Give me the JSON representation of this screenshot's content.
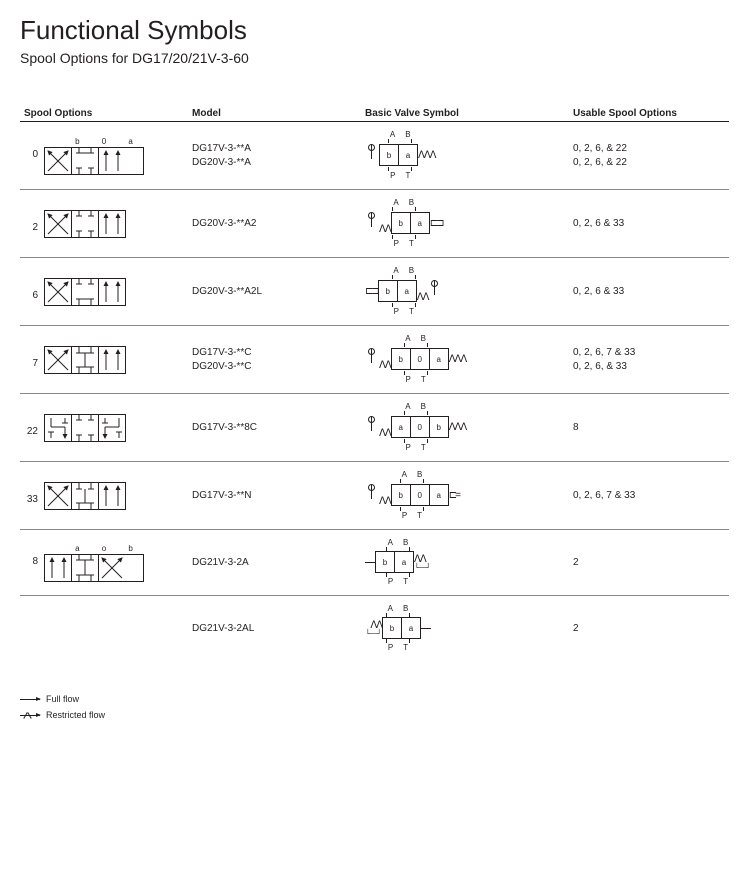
{
  "title": "Functional Symbols",
  "subtitle": "Spool Options for DG17/20/21V-3-60",
  "headers": {
    "spool": "Spool Options",
    "model": "Model",
    "basic": "Basic Valve Symbol",
    "usable": "Usable Spool Options"
  },
  "port_labels": {
    "A": "A",
    "B": "B",
    "P": "P",
    "T": "T",
    "a": "a",
    "b": "b",
    "o": "0"
  },
  "rows": [
    {
      "num": "0",
      "spool_top_labels": [
        "b",
        "0",
        "a"
      ],
      "spool_segs": [
        "cross",
        "ht",
        "parallel"
      ],
      "models": [
        "DG17V-3-**A",
        "DG20V-3-**A"
      ],
      "valve": {
        "left": "lever",
        "right": "spring",
        "cells": [
          "b",
          "a"
        ],
        "ab": true,
        "pt": true
      },
      "usable": [
        "0, 2, 6, & 22",
        "0, 2, 6, & 22"
      ]
    },
    {
      "num": "2",
      "spool_segs": [
        "cross",
        "block2",
        "parallel"
      ],
      "models": [
        "DG20V-3-**A2"
      ],
      "valve": {
        "left": "spring_lever",
        "right": "detent",
        "cells": [
          "b",
          "a"
        ],
        "ab": true,
        "pt": true
      },
      "usable": [
        "0, 2, 6 & 33"
      ]
    },
    {
      "num": "6",
      "spool_segs": [
        "cross",
        "hb",
        "parallel"
      ],
      "models": [
        "DG20V-3-**A2L"
      ],
      "valve": {
        "left": "detent",
        "right": "spring_lever_r",
        "cells": [
          "b",
          "a"
        ],
        "ab": true,
        "pt": true
      },
      "usable": [
        "0, 2, 6 & 33"
      ]
    },
    {
      "num": "7",
      "spool_segs": [
        "cross",
        "hb2",
        "parallel"
      ],
      "models": [
        "DG17V-3-**C",
        "DG20V-3-**C"
      ],
      "valve": {
        "left": "spring_lever",
        "right": "spring",
        "cells": [
          "b",
          "0",
          "a"
        ],
        "ab": true,
        "pt": true
      },
      "usable": [
        "0, 2, 6, 7 & 33",
        "0, 2, 6, & 33"
      ]
    },
    {
      "num": "22",
      "spool_segs": [
        "zz",
        "block2",
        "tt"
      ],
      "models": [
        "DG17V-3-**8C"
      ],
      "valve": {
        "left": "spring_lever",
        "right": "spring",
        "cells": [
          "a",
          "0",
          "b"
        ],
        "ab": true,
        "pt": true
      },
      "usable": [
        "8"
      ]
    },
    {
      "num": "33",
      "spool_segs": [
        "cross",
        "hb3",
        "parallel"
      ],
      "models": [
        "DG17V-3-**N"
      ],
      "valve": {
        "left": "spring_lever",
        "right": "detent_r",
        "cells": [
          "b",
          "0",
          "a"
        ],
        "ab": true,
        "pt": true
      },
      "usable": [
        "0, 2, 6, 7 & 33"
      ]
    },
    {
      "num": "8",
      "spool_top_labels": [
        "a",
        "o",
        "b"
      ],
      "spool_segs": [
        "parallel",
        "iht",
        "cross"
      ],
      "models": [
        "DG21V-3-2A"
      ],
      "valve": {
        "left": "bar",
        "right": "spring_detent",
        "cells": [
          "b",
          "a"
        ],
        "ab": true,
        "pt": true
      },
      "usable": [
        "2"
      ]
    },
    {
      "num": "",
      "spool_segs": null,
      "models": [
        "DG21V-3-2AL"
      ],
      "valve": {
        "left": "spring_detent_l",
        "right": "bar",
        "cells": [
          "b",
          "a"
        ],
        "ab": true,
        "pt": true
      },
      "usable": [
        "2"
      ]
    }
  ],
  "legend": {
    "full": "Full flow",
    "restricted": "Restricted flow"
  },
  "style": {
    "stroke": "#231f20",
    "row_border": "#888888",
    "font_body": 10,
    "font_title": 26
  }
}
